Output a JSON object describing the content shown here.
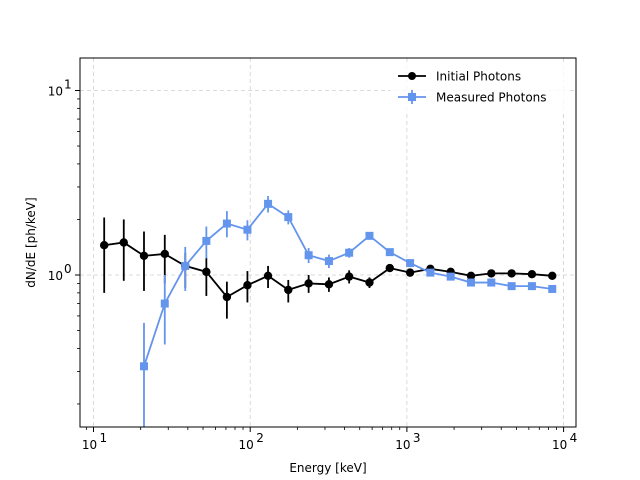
{
  "chart_data": {
    "type": "line",
    "xscale": "log",
    "yscale": "log",
    "xlabel": "Energy [keV]",
    "ylabel": "dN/dE [ph/keV]",
    "xlim": [
      8.2,
      12000
    ],
    "ylim": [
      0.15,
      15
    ],
    "grid": true,
    "legend_position": "top-right",
    "x_ticks": [
      {
        "value": 10,
        "base": "10",
        "exp": "1"
      },
      {
        "value": 100,
        "base": "10",
        "exp": "2"
      },
      {
        "value": 1000,
        "base": "10",
        "exp": "3"
      },
      {
        "value": 10000,
        "base": "10",
        "exp": "4"
      }
    ],
    "y_ticks": [
      {
        "value": 1,
        "label": "10",
        "exp": "0"
      },
      {
        "value": 10,
        "label": "10",
        "exp": "1"
      }
    ],
    "series": [
      {
        "name": "Initial Photons",
        "color": "#000000",
        "marker": "circle",
        "points": [
          {
            "x": 11.7,
            "y": 1.45,
            "err": [
              0.65,
              0.6
            ]
          },
          {
            "x": 15.6,
            "y": 1.5,
            "err": [
              0.57,
              0.5
            ]
          },
          {
            "x": 21.0,
            "y": 1.27,
            "err": [
              0.45,
              0.45
            ]
          },
          {
            "x": 28.5,
            "y": 1.3,
            "err": [
              0.4,
              0.35
            ]
          },
          {
            "x": 38.5,
            "y": 1.12,
            "err": [
              0.27,
              0.2
            ]
          },
          {
            "x": 52.5,
            "y": 1.04,
            "err": [
              0.27,
              0.2
            ]
          },
          {
            "x": 71.0,
            "y": 0.76,
            "err": [
              0.18,
              0.16
            ]
          },
          {
            "x": 96.0,
            "y": 0.88,
            "err": [
              0.17,
              0.17
            ]
          },
          {
            "x": 130.0,
            "y": 0.99,
            "err": [
              0.14,
              0.13
            ]
          },
          {
            "x": 175.0,
            "y": 0.83,
            "err": [
              0.12,
              0.11
            ]
          },
          {
            "x": 236.0,
            "y": 0.9,
            "err": [
              0.1,
              0.1
            ]
          },
          {
            "x": 318.0,
            "y": 0.89,
            "err": [
              0.08,
              0.08
            ]
          },
          {
            "x": 428.0,
            "y": 0.98,
            "err": [
              0.08,
              0.08
            ]
          },
          {
            "x": 577.0,
            "y": 0.91,
            "err": [
              0.06,
              0.06
            ]
          },
          {
            "x": 778.0,
            "y": 1.09,
            "err": [
              0.04,
              0.04
            ]
          },
          {
            "x": 1048.0,
            "y": 1.03,
            "err": [
              0.03,
              0.03
            ]
          },
          {
            "x": 1412.0,
            "y": 1.08,
            "err": [
              0.03,
              0.03
            ]
          },
          {
            "x": 1903.0,
            "y": 1.04,
            "err": [
              0.02,
              0.02
            ]
          },
          {
            "x": 2565.0,
            "y": 0.99,
            "err": [
              0.02,
              0.02
            ]
          },
          {
            "x": 3457.0,
            "y": 1.02,
            "err": [
              0.02,
              0.02
            ]
          },
          {
            "x": 4660.0,
            "y": 1.02,
            "err": [
              0.02,
              0.02
            ]
          },
          {
            "x": 6280.0,
            "y": 1.01,
            "err": [
              0.02,
              0.02
            ]
          },
          {
            "x": 8465.0,
            "y": 0.99,
            "err": [
              0.02,
              0.02
            ]
          }
        ]
      },
      {
        "name": "Measured Photons",
        "color": "#6495ed",
        "marker": "square",
        "points": [
          {
            "x": 21.0,
            "y": 0.32,
            "err": [
              0.17,
              0.23
            ]
          },
          {
            "x": 28.5,
            "y": 0.7,
            "err": [
              0.28,
              0.3
            ]
          },
          {
            "x": 38.5,
            "y": 1.12,
            "err": [
              0.3,
              0.3
            ]
          },
          {
            "x": 52.5,
            "y": 1.53,
            "err": [
              0.3,
              0.3
            ]
          },
          {
            "x": 71.0,
            "y": 1.9,
            "err": [
              0.3,
              0.32
            ]
          },
          {
            "x": 96.0,
            "y": 1.76,
            "err": [
              0.22,
              0.22
            ]
          },
          {
            "x": 130.0,
            "y": 2.43,
            "err": [
              0.25,
              0.25
            ]
          },
          {
            "x": 175.0,
            "y": 2.06,
            "err": [
              0.18,
              0.18
            ]
          },
          {
            "x": 236.0,
            "y": 1.28,
            "err": [
              0.12,
              0.12
            ]
          },
          {
            "x": 318.0,
            "y": 1.19,
            "err": [
              0.1,
              0.1
            ]
          },
          {
            "x": 428.0,
            "y": 1.32,
            "err": [
              0.08,
              0.08
            ]
          },
          {
            "x": 577.0,
            "y": 1.63,
            "err": [
              0.07,
              0.07
            ]
          },
          {
            "x": 778.0,
            "y": 1.33,
            "err": [
              0.05,
              0.05
            ]
          },
          {
            "x": 1048.0,
            "y": 1.16,
            "err": [
              0.04,
              0.04
            ]
          },
          {
            "x": 1412.0,
            "y": 1.03,
            "err": [
              0.03,
              0.03
            ]
          },
          {
            "x": 1903.0,
            "y": 0.98,
            "err": [
              0.03,
              0.03
            ]
          },
          {
            "x": 2565.0,
            "y": 0.91,
            "err": [
              0.02,
              0.02
            ]
          },
          {
            "x": 3457.0,
            "y": 0.91,
            "err": [
              0.02,
              0.02
            ]
          },
          {
            "x": 4660.0,
            "y": 0.87,
            "err": [
              0.02,
              0.02
            ]
          },
          {
            "x": 6280.0,
            "y": 0.87,
            "err": [
              0.02,
              0.02
            ]
          },
          {
            "x": 8465.0,
            "y": 0.84,
            "err": [
              0.02,
              0.02
            ]
          }
        ]
      }
    ]
  }
}
